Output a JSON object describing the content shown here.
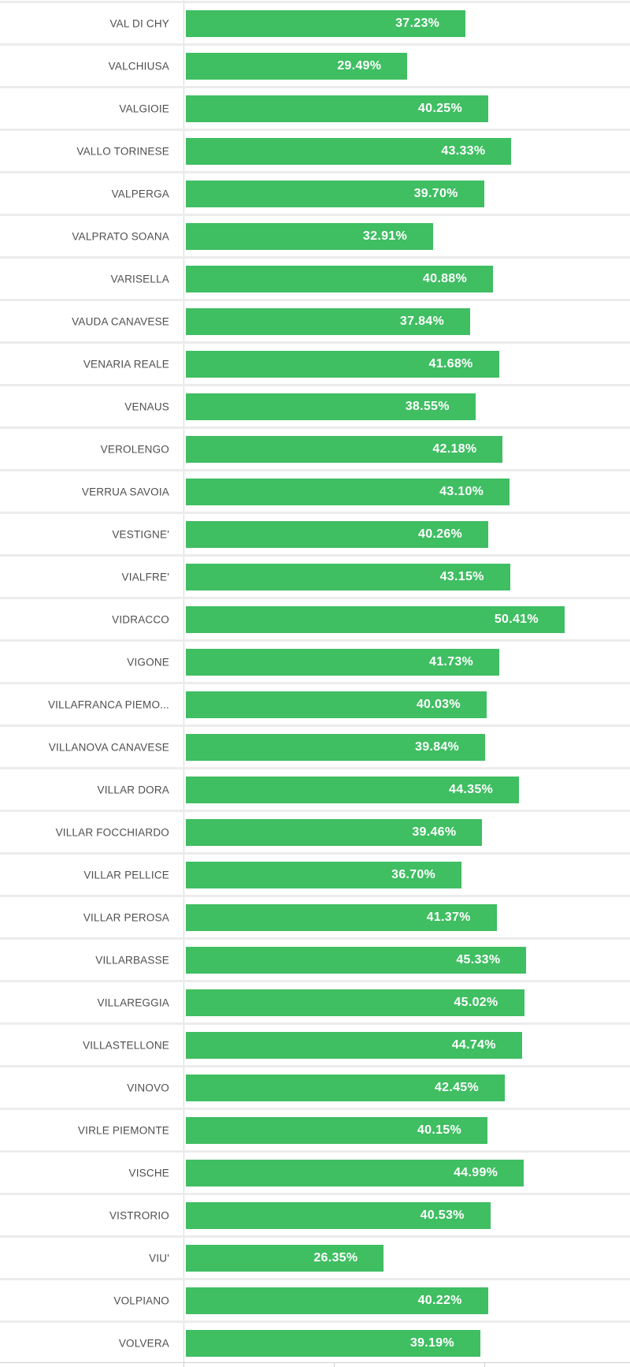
{
  "chart_data": {
    "type": "bar",
    "orientation": "horizontal",
    "title": "",
    "xlabel": "",
    "ylabel": "",
    "categories": [
      "VAL DI CHY",
      "VALCHIUSA",
      "VALGIOIE",
      "VALLO TORINESE",
      "VALPERGA",
      "VALPRATO SOANA",
      "VARISELLA",
      "VAUDA CANAVESE",
      "VENARIA REALE",
      "VENAUS",
      "VEROLENGO",
      "VERRUA SAVOIA",
      "VESTIGNE'",
      "VIALFRE'",
      "VIDRACCO",
      "VIGONE",
      "VILLAFRANCA PIEMO...",
      "VILLANOVA CANAVESE",
      "VILLAR DORA",
      "VILLAR FOCCHIARDO",
      "VILLAR PELLICE",
      "VILLAR PEROSA",
      "VILLARBASSE",
      "VILLAREGGIA",
      "VILLASTELLONE",
      "VINOVO",
      "VIRLE PIEMONTE",
      "VISCHE",
      "VISTRORIO",
      "VIU'",
      "VOLPIANO",
      "VOLVERA"
    ],
    "values": [
      37.23,
      29.49,
      40.25,
      43.33,
      39.7,
      32.91,
      40.88,
      37.84,
      41.68,
      38.55,
      42.18,
      43.1,
      40.26,
      43.15,
      50.41,
      41.73,
      40.03,
      39.84,
      44.35,
      39.46,
      36.7,
      41.37,
      45.33,
      45.02,
      44.74,
      42.45,
      40.15,
      44.99,
      40.53,
      26.35,
      40.22,
      39.19
    ],
    "value_labels": [
      "37.23%",
      "29.49%",
      "40.25%",
      "43.33%",
      "39.70%",
      "32.91%",
      "40.88%",
      "37.84%",
      "41.68%",
      "38.55%",
      "42.18%",
      "43.10%",
      "40.26%",
      "43.15%",
      "50.41%",
      "41.73%",
      "40.03%",
      "39.84%",
      "44.35%",
      "39.46%",
      "36.70%",
      "41.37%",
      "45.33%",
      "45.02%",
      "44.74%",
      "42.45%",
      "40.15%",
      "44.99%",
      "40.53%",
      "26.35%",
      "40.22%",
      "39.19%"
    ],
    "bar_color": "#3fbe62",
    "value_label_color": "#ffffff",
    "category_label_color": "#4f4f4f",
    "x_ticks": [
      0,
      20,
      40
    ],
    "xlim": [
      0,
      59
    ],
    "grid": "row-separators",
    "legend_position": "none"
  }
}
